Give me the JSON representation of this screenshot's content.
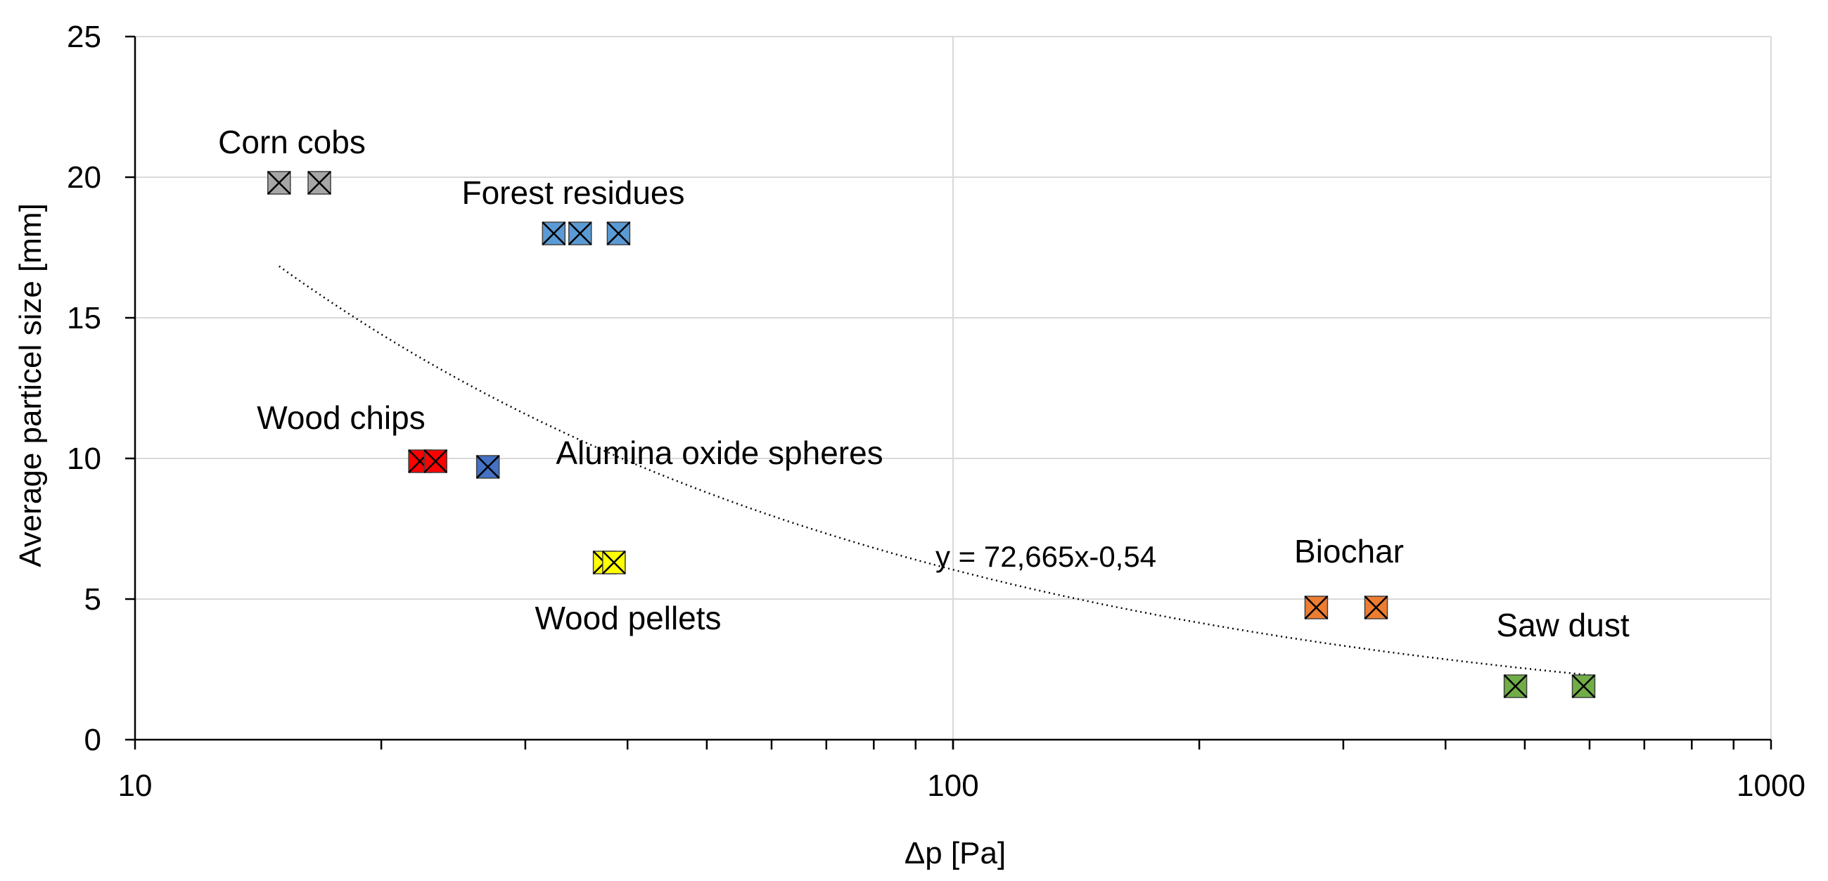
{
  "chart_data": {
    "type": "scatter",
    "title": "",
    "xlabel": "Δp [Pa]",
    "ylabel": "Average particel size [mm]",
    "x_scale": "log",
    "xlim": [
      10,
      1000
    ],
    "ylim": [
      0,
      25
    ],
    "x_ticks": [
      10,
      100,
      1000
    ],
    "x_tick_labels": [
      "10",
      "100",
      "1000"
    ],
    "y_ticks": [
      0,
      5,
      10,
      15,
      20,
      25
    ],
    "y_tick_labels": [
      "0",
      "5",
      "10",
      "15",
      "20",
      "25"
    ],
    "grid": "on",
    "legend": "none",
    "series": [
      {
        "name": "Corn cobs",
        "color": "#a6a6a6",
        "points": [
          [
            15,
            19.8
          ],
          [
            16.8,
            19.8
          ]
        ]
      },
      {
        "name": "Forest residues",
        "color": "#5b9bd5",
        "points": [
          [
            32.5,
            18
          ],
          [
            35,
            18
          ],
          [
            39,
            18
          ]
        ]
      },
      {
        "name": "Wood chips",
        "color": "#ff0000",
        "points": [
          [
            22.3,
            9.9
          ],
          [
            23.3,
            9.9
          ]
        ]
      },
      {
        "name": "Alumina oxide spheres",
        "color": "#4472c4",
        "points": [
          [
            27,
            9.7
          ]
        ]
      },
      {
        "name": "Wood pellets",
        "color": "#ffff00",
        "points": [
          [
            37.5,
            6.3
          ],
          [
            38.5,
            6.3
          ]
        ]
      },
      {
        "name": "Biochar",
        "color": "#ed7d31",
        "points": [
          [
            278,
            4.7
          ],
          [
            329,
            4.7
          ]
        ]
      },
      {
        "name": "Saw dust",
        "color": "#70ad47",
        "points": [
          [
            487,
            1.9
          ],
          [
            590,
            1.9
          ]
        ]
      }
    ],
    "trendline": {
      "type": "power",
      "equation": "y = 72,665x-0,54",
      "a": 72.665,
      "b": -0.54,
      "x_range": [
        15,
        600
      ],
      "style": "dotted",
      "color": "#000000"
    }
  }
}
